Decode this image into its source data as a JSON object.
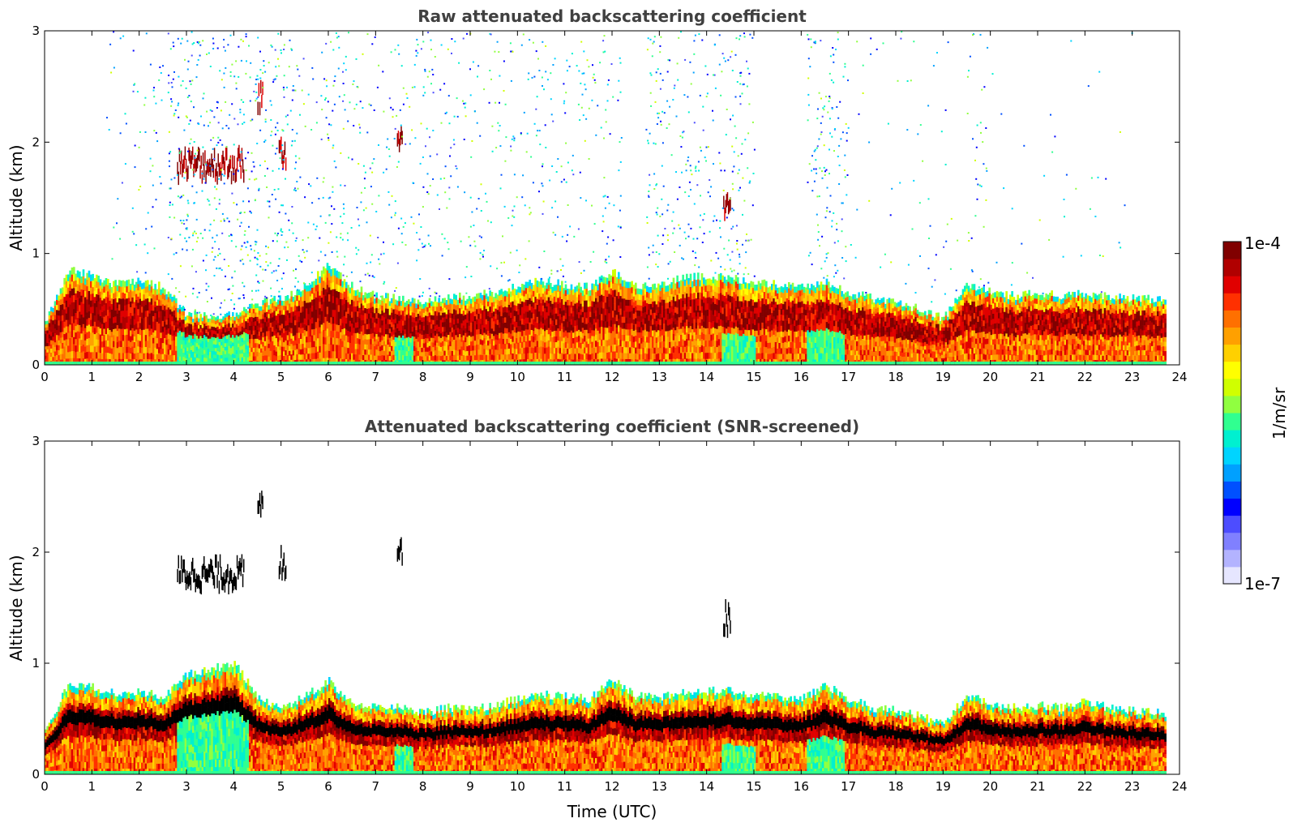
{
  "chart_data": [
    {
      "type": "heatmap",
      "title": "Raw attenuated backscattering coefficient",
      "xlabel": "",
      "ylabel": "Altitude (km)",
      "xlim": [
        0,
        24
      ],
      "ylim": [
        0,
        3
      ],
      "xticks": [
        "0",
        "1",
        "2",
        "3",
        "4",
        "5",
        "6",
        "7",
        "8",
        "9",
        "10",
        "11",
        "12",
        "13",
        "14",
        "15",
        "16",
        "17",
        "18",
        "19",
        "20",
        "21",
        "22",
        "23",
        "24"
      ],
      "yticks": [
        "0",
        "1",
        "2",
        "3"
      ],
      "data_end_time": 23.7,
      "boundary_layer_top_km": [
        [
          0.0,
          0.38
        ],
        [
          0.5,
          0.85
        ],
        [
          1.0,
          0.8
        ],
        [
          1.5,
          0.72
        ],
        [
          2.0,
          0.75
        ],
        [
          2.5,
          0.7
        ],
        [
          3.0,
          0.45
        ],
        [
          3.5,
          0.45
        ],
        [
          4.0,
          0.45
        ],
        [
          4.5,
          0.55
        ],
        [
          5.0,
          0.6
        ],
        [
          5.5,
          0.7
        ],
        [
          6.0,
          0.9
        ],
        [
          6.5,
          0.7
        ],
        [
          7.0,
          0.62
        ],
        [
          7.5,
          0.6
        ],
        [
          8.0,
          0.58
        ],
        [
          8.5,
          0.6
        ],
        [
          9.0,
          0.62
        ],
        [
          9.5,
          0.65
        ],
        [
          10.0,
          0.72
        ],
        [
          10.5,
          0.75
        ],
        [
          11.0,
          0.72
        ],
        [
          11.5,
          0.7
        ],
        [
          12.0,
          0.85
        ],
        [
          12.5,
          0.7
        ],
        [
          13.0,
          0.72
        ],
        [
          13.5,
          0.78
        ],
        [
          14.0,
          0.8
        ],
        [
          14.5,
          0.78
        ],
        [
          15.0,
          0.75
        ],
        [
          15.5,
          0.72
        ],
        [
          16.0,
          0.7
        ],
        [
          16.5,
          0.75
        ],
        [
          17.0,
          0.65
        ],
        [
          17.5,
          0.6
        ],
        [
          18.0,
          0.55
        ],
        [
          18.5,
          0.5
        ],
        [
          19.0,
          0.42
        ],
        [
          19.5,
          0.72
        ],
        [
          20.0,
          0.65
        ],
        [
          20.5,
          0.62
        ],
        [
          21.0,
          0.65
        ],
        [
          21.5,
          0.62
        ],
        [
          22.0,
          0.65
        ],
        [
          22.5,
          0.62
        ],
        [
          23.0,
          0.6
        ],
        [
          23.7,
          0.58
        ]
      ],
      "cloud_layers": [
        {
          "t_start": 2.8,
          "t_end": 4.2,
          "alt_km": 1.8
        },
        {
          "t_start": 4.5,
          "t_end": 4.6,
          "alt_km": 2.4
        },
        {
          "t_start": 4.95,
          "t_end": 5.1,
          "alt_km": 1.9
        },
        {
          "t_start": 7.45,
          "t_end": 7.55,
          "alt_km": 2.05
        },
        {
          "t_start": 14.35,
          "t_end": 14.5,
          "alt_km": 1.4
        }
      ],
      "noise_regions": [
        {
          "t_start": 1.3,
          "t_end": 2.5,
          "density": 0.25
        },
        {
          "t_start": 2.6,
          "t_end": 5.4,
          "density": 0.9
        },
        {
          "t_start": 5.4,
          "t_end": 6.8,
          "density": 0.5
        },
        {
          "t_start": 6.8,
          "t_end": 8.0,
          "density": 0.45
        },
        {
          "t_start": 8.0,
          "t_end": 12.2,
          "density": 0.4
        },
        {
          "t_start": 12.7,
          "t_end": 15.0,
          "density": 0.6
        },
        {
          "t_start": 16.1,
          "t_end": 17.0,
          "density": 0.7
        },
        {
          "t_start": 17.0,
          "t_end": 19.3,
          "density": 0.12
        },
        {
          "t_start": 19.5,
          "t_end": 20.0,
          "density": 0.35
        },
        {
          "t_start": 20.0,
          "t_end": 23.0,
          "density": 0.06
        }
      ]
    },
    {
      "type": "heatmap",
      "title": "Attenuated backscattering coefficient (SNR-screened)",
      "xlabel": "Time (UTC)",
      "ylabel": "Altitude (km)",
      "xlim": [
        0,
        24
      ],
      "ylim": [
        0,
        3
      ],
      "xticks": [
        "0",
        "1",
        "2",
        "3",
        "4",
        "5",
        "6",
        "7",
        "8",
        "9",
        "10",
        "11",
        "12",
        "13",
        "14",
        "15",
        "16",
        "17",
        "18",
        "19",
        "20",
        "21",
        "22",
        "23",
        "24"
      ],
      "yticks": [
        "0",
        "1",
        "2",
        "3"
      ],
      "data_end_time": 23.7,
      "boundary_layer_top_km": [
        [
          0.0,
          0.38
        ],
        [
          0.5,
          0.82
        ],
        [
          1.0,
          0.78
        ],
        [
          1.5,
          0.72
        ],
        [
          2.0,
          0.75
        ],
        [
          2.5,
          0.7
        ],
        [
          3.0,
          0.9
        ],
        [
          3.5,
          0.95
        ],
        [
          4.0,
          1.0
        ],
        [
          4.5,
          0.7
        ],
        [
          5.0,
          0.6
        ],
        [
          5.5,
          0.7
        ],
        [
          6.0,
          0.85
        ],
        [
          6.5,
          0.62
        ],
        [
          7.0,
          0.6
        ],
        [
          7.5,
          0.62
        ],
        [
          8.0,
          0.55
        ],
        [
          8.5,
          0.6
        ],
        [
          9.0,
          0.58
        ],
        [
          9.5,
          0.62
        ],
        [
          10.0,
          0.68
        ],
        [
          10.5,
          0.72
        ],
        [
          11.0,
          0.7
        ],
        [
          11.5,
          0.68
        ],
        [
          12.0,
          0.85
        ],
        [
          12.5,
          0.7
        ],
        [
          13.0,
          0.7
        ],
        [
          13.5,
          0.75
        ],
        [
          14.0,
          0.75
        ],
        [
          14.5,
          0.75
        ],
        [
          15.0,
          0.72
        ],
        [
          15.5,
          0.7
        ],
        [
          16.0,
          0.68
        ],
        [
          16.5,
          0.8
        ],
        [
          17.0,
          0.68
        ],
        [
          17.5,
          0.6
        ],
        [
          18.0,
          0.58
        ],
        [
          18.5,
          0.52
        ],
        [
          19.0,
          0.45
        ],
        [
          19.5,
          0.72
        ],
        [
          20.0,
          0.62
        ],
        [
          20.5,
          0.6
        ],
        [
          21.0,
          0.62
        ],
        [
          21.5,
          0.6
        ],
        [
          22.0,
          0.65
        ],
        [
          22.5,
          0.6
        ],
        [
          23.0,
          0.58
        ],
        [
          23.7,
          0.55
        ]
      ],
      "cloud_layers": [
        {
          "t_start": 2.8,
          "t_end": 4.2,
          "alt_km": 1.8
        },
        {
          "t_start": 4.5,
          "t_end": 4.6,
          "alt_km": 2.4
        },
        {
          "t_start": 4.95,
          "t_end": 5.1,
          "alt_km": 1.9
        },
        {
          "t_start": 7.45,
          "t_end": 7.55,
          "alt_km": 2.05
        },
        {
          "t_start": 14.35,
          "t_end": 14.5,
          "alt_km": 1.4
        }
      ]
    }
  ],
  "colorbar": {
    "label": "1/m/sr",
    "max_label": "1e-4",
    "min_label": "1e-7",
    "colors": [
      "#e6e6ff",
      "#b3b3ff",
      "#8080ff",
      "#4d4dff",
      "#0000ff",
      "#0050ff",
      "#00a0ff",
      "#00d4ff",
      "#00f0d0",
      "#30ff90",
      "#90ff40",
      "#d0ff00",
      "#ffff00",
      "#ffd000",
      "#ffa000",
      "#ff7000",
      "#ff3000",
      "#e00000",
      "#b00000",
      "#800000"
    ]
  }
}
